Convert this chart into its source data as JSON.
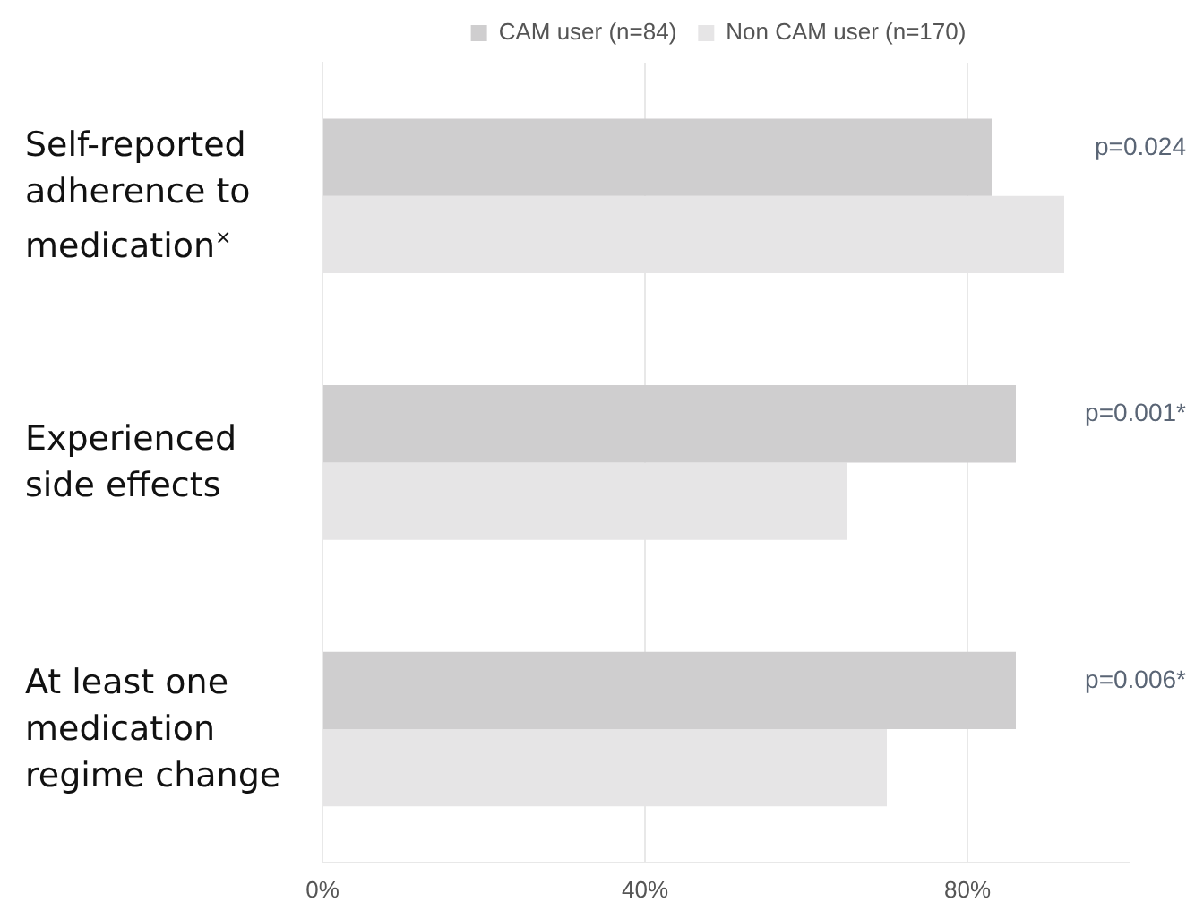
{
  "chart_data": {
    "type": "bar",
    "orientation": "horizontal",
    "categories": [
      "Self-reported adherence to medication$^{×}$",
      "Experienced side effects",
      "At least one medication regime change"
    ],
    "series": [
      {
        "name": "CAM user (n=84)",
        "color": "#cfcecf",
        "values": [
          83,
          86,
          86
        ]
      },
      {
        "name": "Non CAM user (n=170)",
        "color": "#e6e5e6",
        "values": [
          92,
          65,
          70
        ]
      }
    ],
    "xlim": [
      0,
      100
    ],
    "xticks": [
      {
        "value": 0,
        "label": "0%"
      },
      {
        "value": 40,
        "label": "40%"
      },
      {
        "value": 80,
        "label": "80%"
      }
    ],
    "grid": "x",
    "legend": "top",
    "annotations": [
      "p=0.024",
      "p=0.001*",
      "p=0.006*"
    ]
  }
}
